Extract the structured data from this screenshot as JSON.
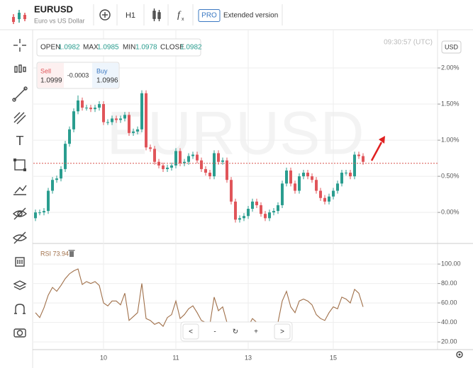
{
  "toolbar": {
    "symbol": "EURUSD",
    "description": "Euro vs US Dollar",
    "interval": "H1",
    "pro_badge": "PRO",
    "pro_text": "Extended version"
  },
  "ohlc": {
    "open_label": "OPEN",
    "open": "1.0982",
    "max_label": "MAX",
    "max": "1.0985",
    "min_label": "MIN",
    "min": "1.0978",
    "close_label": "CLOSE",
    "close": "1.0982"
  },
  "trade": {
    "sell_label": "Sell",
    "sell": "1.0999",
    "spread": "-0.0003",
    "buy_label": "Buy",
    "buy": "1.0996"
  },
  "clock": "09:30:57 (UTC)",
  "currency": "USD",
  "watermark": "EURUSD",
  "nav": [
    "<",
    "-",
    "↻",
    "+",
    ">"
  ],
  "chart_data": [
    {
      "type": "candlestick",
      "categories": [
        null,
        null,
        null,
        null,
        null,
        null,
        null,
        null,
        null,
        null,
        null,
        null,
        null,
        null,
        null,
        null,
        "10",
        null,
        null,
        null,
        null,
        null,
        null,
        null,
        null,
        null,
        null,
        null,
        null,
        null,
        null,
        null,
        null,
        "11",
        null,
        null,
        null,
        null,
        null,
        null,
        null,
        null,
        null,
        null,
        null,
        null,
        null,
        null,
        null,
        null,
        "13",
        null,
        null,
        null,
        null,
        null,
        null,
        null,
        null,
        null,
        null,
        null,
        null,
        null,
        null,
        null,
        null,
        null,
        null,
        null,
        "15",
        null,
        null,
        null,
        null,
        null,
        null,
        null
      ],
      "open": [
        -0.08,
        0,
        0,
        0.02,
        0.3,
        0.45,
        0.47,
        0.6,
        0.95,
        1.15,
        1.4,
        1.55,
        1.45,
        1.45,
        1.43,
        1.45,
        1.5,
        1.25,
        1.25,
        1.3,
        1.28,
        1.3,
        1.35,
        1.1,
        1.12,
        1.15,
        1.65,
        0.9,
        0.88,
        0.7,
        0.65,
        0.6,
        0.62,
        0.65,
        0.85,
        0.68,
        0.7,
        0.78,
        0.8,
        0.72,
        0.6,
        0.55,
        0.5,
        0.82,
        0.7,
        0.72,
        0.45,
        0.15,
        -0.1,
        -0.08,
        -0.05,
        0.05,
        0.15,
        0.1,
        -0.02,
        -0.08,
        0,
        0.02,
        0.1,
        0.4,
        0.58,
        0.4,
        0.3,
        0.5,
        0.55,
        0.5,
        0.45,
        0.3,
        0.2,
        0.15,
        0.22,
        0.3,
        0.4,
        0.55,
        0.55,
        0.5,
        0.8,
        0.78
      ],
      "high": [
        0.04,
        0.04,
        0.06,
        0.34,
        0.49,
        0.51,
        0.64,
        0.99,
        1.19,
        1.44,
        1.62,
        1.59,
        1.49,
        1.49,
        1.49,
        1.54,
        1.54,
        1.29,
        1.34,
        1.34,
        1.34,
        1.39,
        1.39,
        1.16,
        1.19,
        1.69,
        1.69,
        0.94,
        0.92,
        0.74,
        0.69,
        0.66,
        0.69,
        0.89,
        0.89,
        0.74,
        0.82,
        0.84,
        0.84,
        0.76,
        0.64,
        0.59,
        0.86,
        0.86,
        0.76,
        0.76,
        0.49,
        0.19,
        -0.04,
        -0.01,
        0.09,
        0.19,
        0.19,
        0.14,
        0.02,
        0.04,
        0.06,
        0.14,
        0.44,
        0.62,
        0.62,
        0.44,
        0.54,
        0.59,
        0.59,
        0.54,
        0.49,
        0.34,
        0.24,
        0.26,
        0.34,
        0.44,
        0.59,
        0.59,
        0.59,
        0.84,
        0.84,
        0.82
      ],
      "low": [
        -0.12,
        -0.04,
        -0.04,
        -0.02,
        0.26,
        0.41,
        0.43,
        0.56,
        0.91,
        1.11,
        1.36,
        1.41,
        1.41,
        1.39,
        1.39,
        1.41,
        1.21,
        1.21,
        1.21,
        1.24,
        1.24,
        1.26,
        1.06,
        1.06,
        1.08,
        1.11,
        0.86,
        0.84,
        0.66,
        0.61,
        0.56,
        0.56,
        0.58,
        0.61,
        0.64,
        0.64,
        0.66,
        0.74,
        0.68,
        0.56,
        0.51,
        0.46,
        0.46,
        0.66,
        0.66,
        0.41,
        0.11,
        -0.14,
        -0.14,
        -0.12,
        -0.09,
        0.01,
        0.06,
        -0.06,
        -0.12,
        -0.12,
        -0.04,
        -0.02,
        0.06,
        0.36,
        0.36,
        0.26,
        0.26,
        0.46,
        0.46,
        0.41,
        0.26,
        0.16,
        0.11,
        0.11,
        0.18,
        0.26,
        0.36,
        0.51,
        0.46,
        0.46,
        0.74,
        0.66
      ],
      "close": [
        0,
        0,
        0.02,
        0.3,
        0.45,
        0.47,
        0.6,
        0.95,
        1.15,
        1.4,
        1.55,
        1.45,
        1.45,
        1.43,
        1.45,
        1.5,
        1.25,
        1.25,
        1.3,
        1.28,
        1.3,
        1.35,
        1.1,
        1.12,
        1.15,
        1.65,
        0.9,
        0.88,
        0.7,
        0.65,
        0.6,
        0.62,
        0.65,
        0.85,
        0.68,
        0.7,
        0.78,
        0.8,
        0.72,
        0.6,
        0.55,
        0.5,
        0.82,
        0.7,
        0.72,
        0.45,
        0.15,
        -0.1,
        -0.08,
        -0.05,
        0.05,
        0.15,
        0.1,
        -0.02,
        -0.08,
        0,
        0.02,
        0.1,
        0.4,
        0.58,
        0.4,
        0.3,
        0.5,
        0.55,
        0.5,
        0.45,
        0.3,
        0.2,
        0.15,
        0.22,
        0.3,
        0.4,
        0.55,
        0.55,
        0.5,
        0.8,
        0.78,
        0.7
      ],
      "up_color": "#2a9d8f",
      "down_color": "#e0555a",
      "current_price": 0.68,
      "current_price_color": "#d9534f",
      "ylim": [
        -0.41,
        2.5
      ],
      "yticks": [
        {
          "value": 0,
          "label": "0.00%"
        },
        {
          "value": 0.5,
          "label": "0.50%"
        },
        {
          "value": 1,
          "label": "1.00%"
        },
        {
          "value": 1.5,
          "label": "1.50%"
        },
        {
          "value": 2,
          "label": "2.00%"
        }
      ],
      "grid": true
    },
    {
      "type": "line",
      "title": "RSI 73.94",
      "color": "#a0704a",
      "values": [
        50,
        45,
        55,
        68,
        76,
        72,
        78,
        85,
        90,
        93,
        95,
        79,
        82,
        80,
        82,
        78,
        60,
        57,
        62,
        62,
        58,
        70,
        42,
        46,
        50,
        80,
        44,
        42,
        38,
        40,
        36,
        45,
        48,
        62,
        44,
        48,
        54,
        57,
        50,
        42,
        40,
        38,
        66,
        52,
        56,
        40,
        30,
        24,
        28,
        30,
        36,
        44,
        40,
        32,
        30,
        36,
        38,
        40,
        62,
        72,
        56,
        50,
        62,
        64,
        62,
        58,
        48,
        44,
        42,
        50,
        56,
        54,
        66,
        64,
        60,
        74,
        70,
        56
      ],
      "ylim": [
        13.5,
        119
      ],
      "yticks": [
        {
          "value": 20,
          "label": "20.00"
        },
        {
          "value": 40,
          "label": "40.00"
        },
        {
          "value": 60,
          "label": "60.00"
        },
        {
          "value": 80,
          "label": "80.00"
        },
        {
          "value": 100,
          "label": "100.00"
        }
      ],
      "grid": true
    }
  ]
}
